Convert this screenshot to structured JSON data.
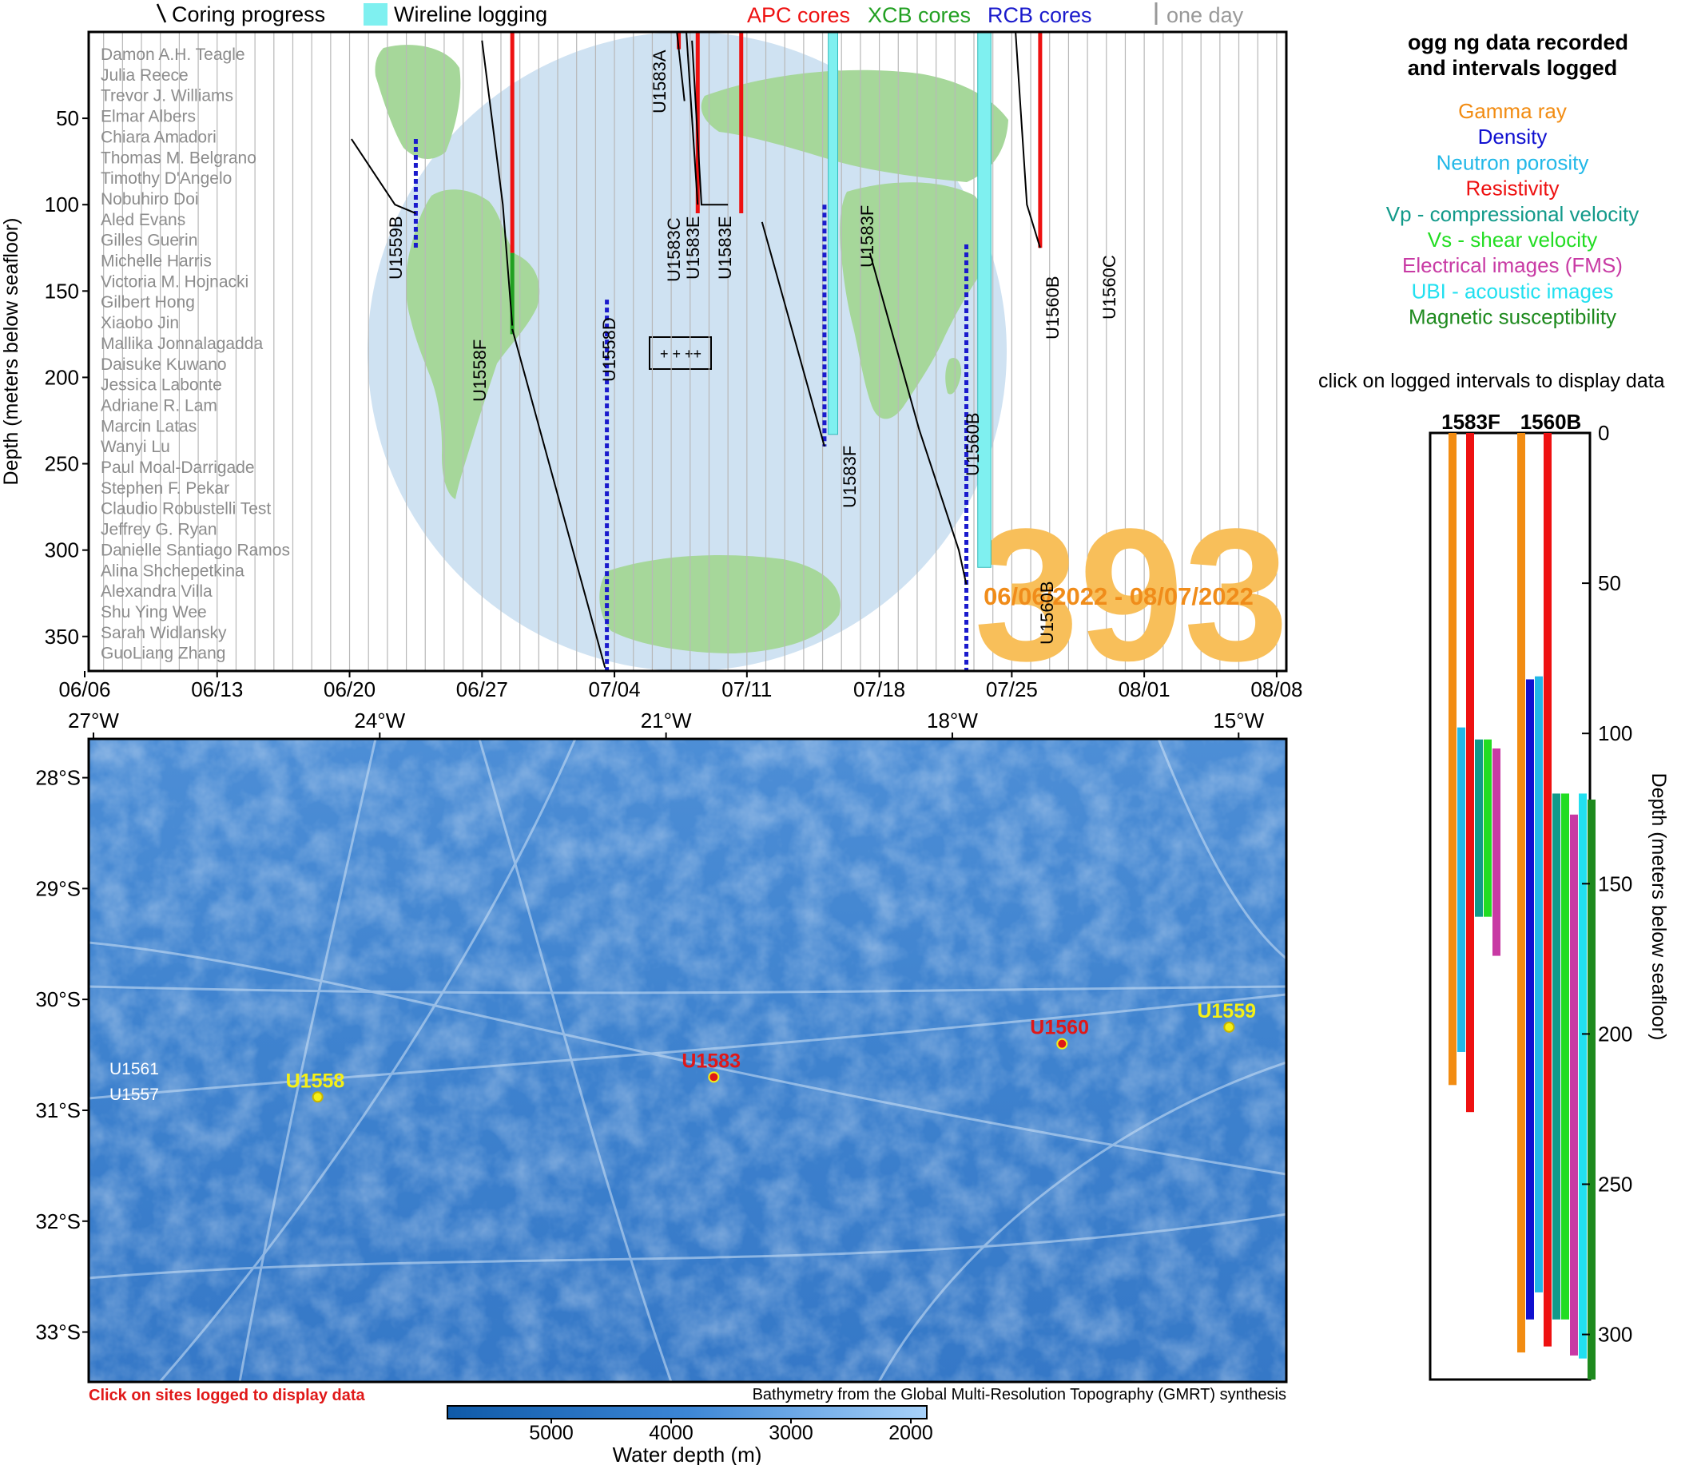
{
  "header": {
    "coring_label": "Coring progress",
    "wireline_label": "Wireline logging",
    "apc_label": "APC cores",
    "xcb_label": "XCB cores",
    "rcb_label": "RCB cores",
    "one_day_label": "one day"
  },
  "colors": {
    "apc": "#ee1111",
    "xcb": "#22a022",
    "rcb": "#1a1acc",
    "wireline": "#7ff0f0",
    "globe_ocean": "#cfe2f2",
    "globe_land": "#a6d79a",
    "expedition": "#f8bf5a",
    "expedition_dates": "#f08c1a"
  },
  "timeline": {
    "ylabel": "Depth (meters below seafloor)",
    "y_ticks": [
      50,
      100,
      150,
      200,
      250,
      300,
      350
    ],
    "y_range": [
      0,
      370
    ],
    "x_ticks": [
      "06/06",
      "06/13",
      "06/20",
      "06/27",
      "07/04",
      "07/11",
      "07/18",
      "07/25",
      "08/01",
      "08/08"
    ],
    "expedition_number": "393",
    "expedition_dates": "06/06/2022 - 08/07/2022",
    "participants": [
      "Damon A.H. Teagle",
      "Julia Reece",
      "Trevor J. Williams",
      "Elmar Albers",
      "Chiara Amadori",
      "Thomas M. Belgrano",
      "Timothy D'Angelo",
      "Nobuhiro Doi",
      "Aled Evans",
      "Gilles Guerin",
      "Michelle Harris",
      "Victoria M. Hojnacki",
      "Gilbert Hong",
      "Xiaobo Jin",
      "Mallika Jonnalagadda",
      "Daisuke Kuwano",
      "Jessica Labonte",
      "Adriane R. Lam",
      "Marcin Latas",
      "Wanyi Lu",
      "Paul Moal-Darrigade",
      "Stephen F. Pekar",
      "Claudio Robustelli Test",
      "Jeffrey G. Ryan",
      "Danielle Santiago Ramos",
      "Alina Shchepetkina",
      "Alexandra Villa",
      "Shu Ying Wee",
      "Sarah Widlansky",
      "GuoLiang Zhang"
    ],
    "hole_labels": [
      "U1559B",
      "U1558F",
      "U1558D",
      "U1583A",
      "U1583C",
      "U1583E",
      "U1583E",
      "U1583F",
      "U1583F",
      "U1560B",
      "U1560B",
      "U1560B",
      "U1560C"
    ]
  },
  "map": {
    "lon_ticks": [
      "27°W",
      "24°W",
      "21°W",
      "18°W",
      "15°W"
    ],
    "lat_ticks": [
      "28°S",
      "29°S",
      "30°S",
      "31°S",
      "32°S",
      "33°S"
    ],
    "sites": [
      {
        "name": "U1558",
        "lon": -24.65,
        "lat": -30.88,
        "color": "#f5f016"
      },
      {
        "name": "U1583",
        "lon": -20.5,
        "lat": -30.7,
        "color": "#e01818"
      },
      {
        "name": "U1560",
        "lon": -16.85,
        "lat": -30.4,
        "color": "#e01818"
      },
      {
        "name": "U1559",
        "lon": -15.1,
        "lat": -30.25,
        "color": "#f5f016"
      }
    ],
    "other_labels": [
      "U1561",
      "U1557"
    ],
    "click_note": "Click on sites logged to display data",
    "credit": "Bathymetry from the Global Multi-Resolution Topography (GMRT) synthesis",
    "colorbar_ticks": [
      "5000",
      "4000",
      "3000",
      "2000"
    ],
    "colorbar_label": "Water depth (m)"
  },
  "legend": {
    "title_line1": "ogg ng data recorded",
    "title_line2": "and intervals logged",
    "items": [
      {
        "label": "Gamma ray",
        "color": "#f28c12"
      },
      {
        "label": "Density",
        "color": "#1010d0"
      },
      {
        "label": "Neutron porosity",
        "color": "#22b8e8"
      },
      {
        "label": "Resistivity",
        "color": "#ee1111"
      },
      {
        "label": "Vp - compressional velocity",
        "color": "#129a8a"
      },
      {
        "label": "Vs - shear velocity",
        "color": "#22dd22"
      },
      {
        "label": "Electrical images (FMS)",
        "color": "#c83aa4"
      },
      {
        "label": "UBI - acoustic images",
        "color": "#22e0f0"
      },
      {
        "label": "Magnetic susceptibility",
        "color": "#1e8a1e"
      }
    ],
    "click_note": "click on logged intervals to display data"
  },
  "chart_data": [
    {
      "type": "line",
      "title": "",
      "xlabel": "",
      "ylabel": "Depth (meters below seafloor)",
      "ylim": [
        0,
        370
      ],
      "xlim": [
        "06/06",
        "08/09"
      ],
      "coring_progress": [
        {
          "name": "U1559B",
          "points": [
            [
              14.1,
              62
            ],
            [
              16.4,
              100
            ],
            [
              17.5,
              105
            ]
          ]
        },
        {
          "name": "U1558F",
          "points": [
            [
              21.0,
              5
            ],
            [
              22.1,
              100
            ],
            [
              22.6,
              170
            ]
          ]
        },
        {
          "name": "U1558D",
          "points": [
            [
              22.6,
              172
            ],
            [
              27.5,
              368
            ]
          ]
        },
        {
          "name": "U1583A",
          "points": [
            [
              31.3,
              0
            ],
            [
              31.7,
              40
            ]
          ]
        },
        {
          "name": "U1583C",
          "points": [
            [
              31.8,
              0
            ],
            [
              32.4,
              100
            ]
          ]
        },
        {
          "name": "U1583E",
          "points": [
            [
              32.1,
              5
            ],
            [
              32.6,
              100
            ],
            [
              34.0,
              100
            ]
          ]
        },
        {
          "name": "U1583F",
          "points": [
            [
              35.8,
              110
            ],
            [
              39.1,
              240
            ]
          ]
        },
        {
          "name": "U1560B",
          "points": [
            [
              41.5,
              128
            ],
            [
              44.1,
              230
            ],
            [
              46.2,
              300
            ],
            [
              46.6,
              320
            ]
          ]
        },
        {
          "name": "U1560C",
          "points": [
            [
              49.2,
              0
            ],
            [
              49.8,
              100
            ],
            [
              50.5,
              125
            ]
          ]
        }
      ],
      "core_intervals": [
        {
          "hole": "U1559B",
          "type": "RCB",
          "day": 17.5,
          "top": 62,
          "bottom": 125
        },
        {
          "hole": "U1558F",
          "type": "APC",
          "day": 22.6,
          "top": 0,
          "bottom": 128
        },
        {
          "hole": "U1558F",
          "type": "XCB",
          "day": 22.6,
          "top": 128,
          "bottom": 175
        },
        {
          "hole": "U1558D",
          "type": "RCB",
          "day": 27.6,
          "top": 155,
          "bottom": 370
        },
        {
          "hole": "U1583A",
          "type": "APC",
          "day": 31.4,
          "top": 0,
          "bottom": 10
        },
        {
          "hole": "U1583C",
          "type": "APC",
          "day": 32.4,
          "top": 0,
          "bottom": 105
        },
        {
          "hole": "U1583E",
          "type": "APC",
          "day": 34.7,
          "top": 0,
          "bottom": 105
        },
        {
          "hole": "U1583F",
          "type": "RCB",
          "day": 39.1,
          "top": 100,
          "bottom": 240
        },
        {
          "hole": "U1560B",
          "type": "RCB",
          "day": 46.6,
          "top": 123,
          "bottom": 370
        },
        {
          "hole": "U1560C",
          "type": "APC",
          "day": 50.5,
          "top": 0,
          "bottom": 125
        }
      ],
      "wireline_logging": [
        {
          "hole": "U1583F",
          "day_start": 39.3,
          "day_end": 39.8,
          "top": 0,
          "bottom": 233
        },
        {
          "hole": "U1560B",
          "day_start": 47.2,
          "day_end": 47.9,
          "top": 0,
          "bottom": 310
        }
      ]
    },
    {
      "type": "bar",
      "title": "",
      "ylabel": "Depth (meters below seafloor)",
      "ylim": [
        0,
        315
      ],
      "categories": [
        "1583F",
        "1560B"
      ],
      "intervals": [
        {
          "hole": "1583F",
          "tool": "Gamma ray",
          "top": 0,
          "bottom": 217
        },
        {
          "hole": "1583F",
          "tool": "Neutron porosity",
          "top": 98,
          "bottom": 206
        },
        {
          "hole": "1583F",
          "tool": "Resistivity",
          "top": 0,
          "bottom": 226
        },
        {
          "hole": "1583F",
          "tool": "Vp - compressional velocity",
          "top": 102,
          "bottom": 161
        },
        {
          "hole": "1583F",
          "tool": "Vs - shear velocity",
          "top": 102,
          "bottom": 161
        },
        {
          "hole": "1583F",
          "tool": "Electrical images (FMS)",
          "top": 105,
          "bottom": 174
        },
        {
          "hole": "1560B",
          "tool": "Gamma ray",
          "top": 0,
          "bottom": 306
        },
        {
          "hole": "1560B",
          "tool": "Density",
          "top": 82,
          "bottom": 295
        },
        {
          "hole": "1560B",
          "tool": "Neutron porosity",
          "top": 81,
          "bottom": 286
        },
        {
          "hole": "1560B",
          "tool": "Resistivity",
          "top": 0,
          "bottom": 304
        },
        {
          "hole": "1560B",
          "tool": "Vp - compressional velocity",
          "top": 120,
          "bottom": 295
        },
        {
          "hole": "1560B",
          "tool": "Vs - shear velocity",
          "top": 120,
          "bottom": 295
        },
        {
          "hole": "1560B",
          "tool": "Electrical images (FMS)",
          "top": 127,
          "bottom": 307
        },
        {
          "hole": "1560B",
          "tool": "UBI - acoustic images",
          "top": 120,
          "bottom": 308
        },
        {
          "hole": "1560B",
          "tool": "Magnetic susceptibility",
          "top": 122,
          "bottom": 315
        }
      ],
      "y_ticks": [
        0,
        50,
        100,
        150,
        200,
        250,
        300
      ]
    }
  ]
}
